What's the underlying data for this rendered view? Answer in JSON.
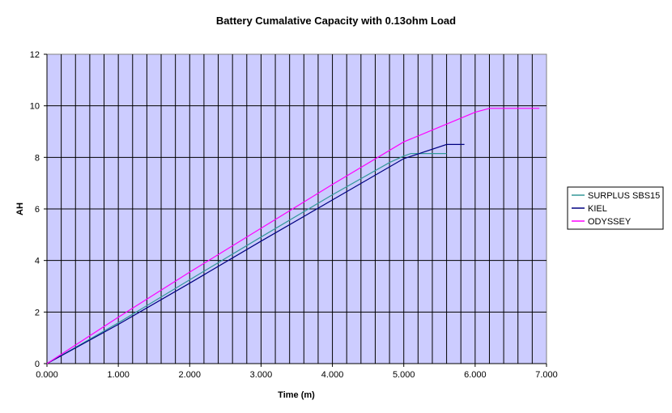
{
  "chart_data": {
    "type": "line",
    "title": "Battery Cumalative Capacity with 0.13ohm Load",
    "xlabel": "Time (m)",
    "ylabel": "AH",
    "xlim": [
      0,
      7
    ],
    "ylim": [
      0,
      12
    ],
    "x_ticks": [
      "0.000",
      "1.000",
      "2.000",
      "3.000",
      "4.000",
      "5.000",
      "6.000",
      "7.000"
    ],
    "y_ticks": [
      "0",
      "2",
      "4",
      "6",
      "8",
      "10",
      "12"
    ],
    "grid": true,
    "legend_position": "right",
    "plot_background": "#ccccff",
    "series": [
      {
        "name": "SURPLUS SBS15",
        "color": "#339999",
        "points": [
          [
            0,
            0
          ],
          [
            1.0,
            1.58
          ],
          [
            2.0,
            3.25
          ],
          [
            3.0,
            4.91
          ],
          [
            4.0,
            6.55
          ],
          [
            4.8,
            7.8
          ],
          [
            5.0,
            8.05
          ],
          [
            5.1,
            8.15
          ],
          [
            5.6,
            8.15
          ]
        ]
      },
      {
        "name": "KIEL",
        "color": "#000080",
        "points": [
          [
            0,
            0
          ],
          [
            1.0,
            1.52
          ],
          [
            2.0,
            3.12
          ],
          [
            3.0,
            4.75
          ],
          [
            4.0,
            6.35
          ],
          [
            5.0,
            7.95
          ],
          [
            5.6,
            8.5
          ],
          [
            5.85,
            8.5
          ]
        ]
      },
      {
        "name": "ODYSSEY",
        "color": "#ff00ff",
        "points": [
          [
            0,
            0
          ],
          [
            1.0,
            1.8
          ],
          [
            2.0,
            3.55
          ],
          [
            3.0,
            5.25
          ],
          [
            4.0,
            6.95
          ],
          [
            5.0,
            8.6
          ],
          [
            6.0,
            9.75
          ],
          [
            6.2,
            9.9
          ],
          [
            6.9,
            9.9
          ]
        ]
      }
    ]
  }
}
